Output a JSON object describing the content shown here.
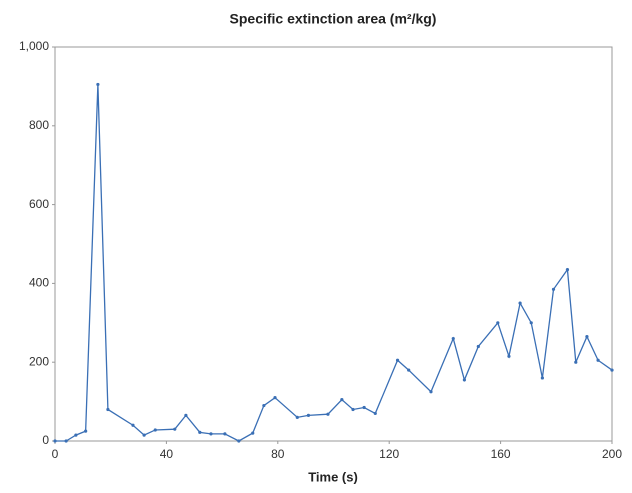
{
  "chart_data": {
    "type": "line",
    "title": "Specific extinction area (m²/kg)",
    "x_label": "Time (s)",
    "x": [
      0,
      4,
      7.5,
      11,
      15.4,
      19,
      28,
      32,
      36,
      43,
      47,
      52,
      56,
      61,
      66,
      71,
      75,
      79,
      87,
      91,
      98,
      103,
      107,
      111,
      115,
      123,
      127,
      135,
      143,
      147,
      152,
      159,
      163,
      167,
      171,
      175,
      179,
      184,
      187,
      191,
      195,
      200
    ],
    "series": [
      {
        "name": "Specific extinction area",
        "color": "#3a6fb5",
        "values": [
          0,
          0,
          15,
          25,
          905,
          80,
          40,
          15,
          28,
          30,
          65,
          22,
          18,
          18,
          0,
          20,
          90,
          110,
          60,
          65,
          68,
          105,
          80,
          85,
          70,
          205,
          180,
          125,
          260,
          155,
          240,
          300,
          215,
          350,
          300,
          160,
          385,
          435,
          200,
          265,
          205,
          180
        ]
      }
    ],
    "xlim": [
      0,
      200
    ],
    "xticks": [
      0,
      40,
      80,
      120,
      160,
      200
    ],
    "ylim": [
      0,
      1000
    ],
    "yticks": [
      0,
      200,
      400,
      600,
      800,
      {
        "value": 1000,
        "label": "1,000"
      }
    ]
  }
}
